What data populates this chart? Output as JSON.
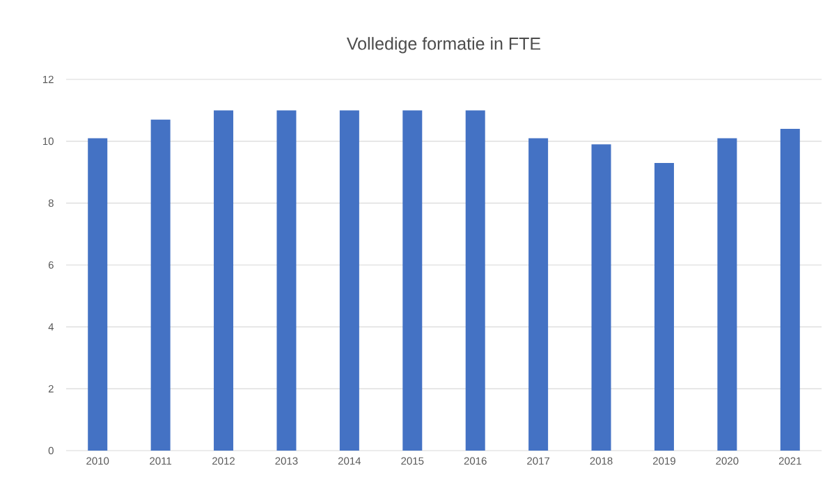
{
  "chart_data": {
    "type": "bar",
    "title": "Volledige formatie in FTE",
    "categories": [
      "2010",
      "2011",
      "2012",
      "2013",
      "2014",
      "2015",
      "2016",
      "2017",
      "2018",
      "2019",
      "2020",
      "2021"
    ],
    "values": [
      10.1,
      10.7,
      11,
      11,
      11,
      11,
      11,
      10.1,
      9.9,
      9.3,
      10.1,
      10.4
    ],
    "color": "#4472c4",
    "ylim": [
      0,
      12
    ],
    "yticks": [
      0,
      2,
      4,
      6,
      8,
      10,
      12
    ],
    "grid": "y"
  }
}
